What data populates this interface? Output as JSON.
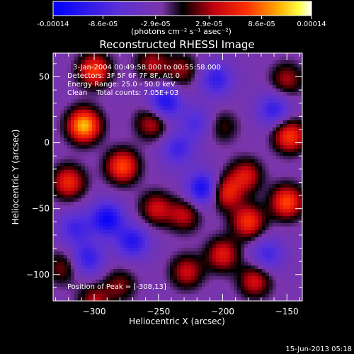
{
  "colorbar": {
    "tick_labels": [
      "-0.00014",
      "-8.6e-05",
      "-2.9e-05",
      "2.9e-05",
      "8.6e-05",
      "0.00014"
    ],
    "tick_values": [
      -0.00014,
      -8.6e-05,
      -2.9e-05,
      2.9e-05,
      8.6e-05,
      0.00014
    ],
    "range": [
      -0.00014,
      0.00014
    ],
    "unit_label": "(photons cm⁻² s⁻¹ asec⁻²)"
  },
  "chart_data": {
    "type": "heatmap",
    "title": "Reconstructed RHESSI Image",
    "xlabel": "Heliocentric X (arcsec)",
    "ylabel": "Heliocentric Y (arcsec)",
    "xlim": [
      -332,
      -138
    ],
    "ylim": [
      -120,
      68
    ],
    "x_ticks": [
      -300,
      -250,
      -200,
      -150
    ],
    "y_ticks": [
      50,
      0,
      -50,
      -100
    ],
    "x_tick_labels": [
      "−300",
      "−250",
      "−200",
      "−150"
    ],
    "y_tick_labels": [
      "50",
      "0",
      "−50",
      "−100"
    ],
    "colormap": "rhessi-blue-purple-red-yellow-white",
    "annotations": [
      "3-Jan-2004 00:49:58.000 to 00:55:58.000",
      "Detectors: 3F 5F 6F 7F 8F, Att 0",
      "Energy Range: 25.0 - 50.0 keV",
      "Clean    Total counts: 7.05E+03"
    ],
    "peak_label": "Position of Peak = [-308,13]",
    "peak": [
      -308,
      13
    ],
    "blobs": [
      {
        "x": -308,
        "y": 13,
        "v": 0.00014
      },
      {
        "x": -300,
        "y": 55,
        "v": 0.0001
      },
      {
        "x": -255,
        "y": 60,
        "v": 6e-05
      },
      {
        "x": -320,
        "y": -30,
        "v": 9e-05
      },
      {
        "x": -278,
        "y": -18,
        "v": 0.000105
      },
      {
        "x": -255,
        "y": 15,
        "v": 7e-05
      },
      {
        "x": -252,
        "y": -50,
        "v": 7e-05
      },
      {
        "x": -230,
        "y": -55,
        "v": 6.5e-05
      },
      {
        "x": -232,
        "y": 55,
        "v": 5.5e-05
      },
      {
        "x": -198,
        "y": -38,
        "v": 9e-05
      },
      {
        "x": -180,
        "y": -60,
        "v": 9.5e-05
      },
      {
        "x": -182,
        "y": -25,
        "v": 7.5e-05
      },
      {
        "x": -200,
        "y": -85,
        "v": 8e-05
      },
      {
        "x": -228,
        "y": -98,
        "v": 7e-05
      },
      {
        "x": -175,
        "y": -105,
        "v": 7.5e-05
      },
      {
        "x": -150,
        "y": -45,
        "v": 0.000105
      },
      {
        "x": -148,
        "y": 5,
        "v": 0.0001
      },
      {
        "x": -150,
        "y": 48,
        "v": 6e-05
      },
      {
        "x": -200,
        "y": 12,
        "v": 4e-05
      },
      {
        "x": -325,
        "y": -95,
        "v": 5e-05
      },
      {
        "x": -280,
        "y": -108,
        "v": 5e-05
      },
      {
        "x": -300,
        "y": -120,
        "v": 6e-05
      },
      {
        "x": -245,
        "y": 30,
        "v": -9e-05
      },
      {
        "x": -290,
        "y": -58,
        "v": -0.0001
      },
      {
        "x": -270,
        "y": -75,
        "v": -8e-05
      },
      {
        "x": -215,
        "y": -35,
        "v": -0.0001
      },
      {
        "x": -205,
        "y": 48,
        "v": -7e-05
      },
      {
        "x": -160,
        "y": 25,
        "v": -7e-05
      },
      {
        "x": -165,
        "y": -85,
        "v": -6e-05
      },
      {
        "x": -315,
        "y": -65,
        "v": -6e-05
      },
      {
        "x": -305,
        "y": -88,
        "v": -7e-05
      },
      {
        "x": -235,
        "y": -5,
        "v": -6e-05
      },
      {
        "x": -220,
        "y": 15,
        "v": -5e-05
      }
    ]
  },
  "footer": {
    "date_label": "15-Jun-2013 05:18"
  }
}
